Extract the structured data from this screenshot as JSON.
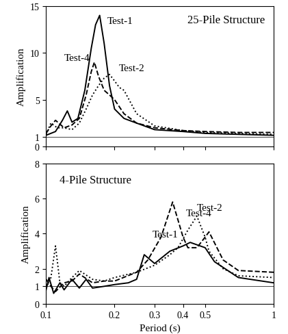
{
  "chart_data": [
    {
      "type": "line",
      "title": "25-Pile Structure",
      "ylabel": "Amplification",
      "xlim": [
        0.1,
        1
      ],
      "xticks": [
        0.1,
        0.2,
        0.3,
        0.4,
        0.5,
        1
      ],
      "log": "x",
      "ylim": [
        0,
        15
      ],
      "yticks": [
        0,
        1,
        5,
        10,
        15
      ],
      "reference_line": 1,
      "grid": false,
      "tick_labels": "y",
      "series": [
        {
          "name": "Test-1",
          "color": "#000000",
          "line_style": "solid",
          "x": [
            0.1,
            0.11,
            0.118,
            0.124,
            0.13,
            0.138,
            0.148,
            0.158,
            0.165,
            0.172,
            0.18,
            0.19,
            0.2,
            0.22,
            0.25,
            0.3,
            0.4,
            0.5,
            0.7,
            1.0
          ],
          "values": [
            1.2,
            1.6,
            2.8,
            3.8,
            2.6,
            3.0,
            6.0,
            10.5,
            13.0,
            14.0,
            11.0,
            6.5,
            4.0,
            3.0,
            2.5,
            1.8,
            1.6,
            1.4,
            1.3,
            1.2
          ]
        },
        {
          "name": "Test-2",
          "color": "#000000",
          "line_style": "dotted",
          "x": [
            0.1,
            0.105,
            0.112,
            0.12,
            0.13,
            0.14,
            0.15,
            0.16,
            0.17,
            0.18,
            0.19,
            0.2,
            0.21,
            0.22,
            0.25,
            0.3,
            0.4,
            0.5,
            0.7,
            1.0
          ],
          "values": [
            1.3,
            2.5,
            2.0,
            2.0,
            1.8,
            2.5,
            4.0,
            5.5,
            6.5,
            7.3,
            7.7,
            7.0,
            6.3,
            6.0,
            3.5,
            2.2,
            1.7,
            1.5,
            1.4,
            1.3
          ]
        },
        {
          "name": "Test-4",
          "color": "#000000",
          "line_style": "dashed",
          "x": [
            0.1,
            0.105,
            0.11,
            0.12,
            0.13,
            0.14,
            0.15,
            0.158,
            0.163,
            0.17,
            0.18,
            0.19,
            0.2,
            0.22,
            0.25,
            0.3,
            0.4,
            0.5,
            0.7,
            1.0
          ],
          "values": [
            1.4,
            2.2,
            2.8,
            2.0,
            2.3,
            3.0,
            5.5,
            8.0,
            9.0,
            7.5,
            6.0,
            5.5,
            5.0,
            3.5,
            2.5,
            2.0,
            1.7,
            1.6,
            1.5,
            1.5
          ]
        }
      ]
    },
    {
      "type": "line",
      "title": "4-Pile Structure",
      "xlabel": "Period (s)",
      "ylabel": "Amplification",
      "xlim": [
        0.1,
        1
      ],
      "xticks": [
        0.1,
        0.2,
        0.3,
        0.4,
        0.5,
        1
      ],
      "log": "x",
      "ylim": [
        0,
        8
      ],
      "yticks": [
        0,
        1,
        2,
        4,
        6,
        8
      ],
      "reference_line": 1,
      "grid": false,
      "series": [
        {
          "name": "Test-1",
          "color": "#000000",
          "line_style": "solid",
          "x": [
            0.1,
            0.103,
            0.108,
            0.115,
            0.12,
            0.13,
            0.14,
            0.15,
            0.16,
            0.18,
            0.2,
            0.23,
            0.25,
            0.27,
            0.3,
            0.35,
            0.4,
            0.43,
            0.5,
            0.55,
            0.7,
            1.0
          ],
          "values": [
            0.8,
            1.5,
            0.6,
            1.2,
            0.8,
            1.4,
            0.9,
            1.4,
            0.9,
            1.0,
            1.1,
            1.2,
            1.4,
            2.8,
            2.3,
            3.0,
            3.3,
            3.5,
            3.2,
            2.4,
            1.5,
            1.2
          ]
        },
        {
          "name": "Test-2",
          "color": "#000000",
          "line_style": "dotted",
          "x": [
            0.1,
            0.105,
            0.11,
            0.115,
            0.12,
            0.13,
            0.14,
            0.16,
            0.18,
            0.2,
            0.25,
            0.3,
            0.35,
            0.38,
            0.42,
            0.46,
            0.5,
            0.52,
            0.6,
            0.7,
            1.0
          ],
          "values": [
            0.9,
            1.5,
            3.3,
            1.2,
            1.0,
            1.5,
            1.9,
            1.4,
            1.3,
            1.5,
            1.8,
            2.2,
            2.8,
            3.2,
            4.2,
            5.0,
            3.8,
            3.0,
            2.0,
            1.6,
            1.5
          ]
        },
        {
          "name": "Test-4",
          "color": "#000000",
          "line_style": "dashed",
          "x": [
            0.1,
            0.105,
            0.11,
            0.12,
            0.13,
            0.14,
            0.16,
            0.18,
            0.2,
            0.25,
            0.28,
            0.32,
            0.36,
            0.4,
            0.42,
            0.46,
            0.5,
            0.52,
            0.6,
            0.7,
            1.0
          ],
          "values": [
            1.4,
            1.0,
            0.7,
            1.2,
            1.3,
            1.7,
            1.2,
            1.3,
            1.3,
            1.8,
            2.5,
            3.8,
            5.8,
            3.8,
            3.2,
            3.2,
            3.8,
            4.1,
            2.5,
            1.9,
            1.8
          ]
        }
      ]
    }
  ]
}
